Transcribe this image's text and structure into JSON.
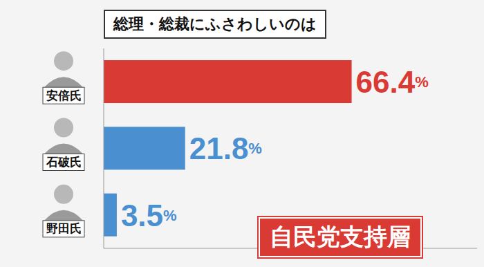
{
  "chart_data": {
    "type": "bar",
    "orientation": "horizontal",
    "title": "総理・総裁にふさわしいのは",
    "categories": [
      "安倍氏",
      "石破氏",
      "野田氏"
    ],
    "values": [
      66.4,
      21.8,
      3.5
    ],
    "value_labels": [
      "66.4%",
      "21.8%",
      "3.5%"
    ],
    "colors": [
      "#d93a33",
      "#4a8fd0",
      "#4a8fd0"
    ],
    "data_labels": true,
    "xlim": [
      0,
      100
    ],
    "tick_labels": "y",
    "grid": false,
    "annotations": [
      "自民党支持層"
    ]
  }
}
